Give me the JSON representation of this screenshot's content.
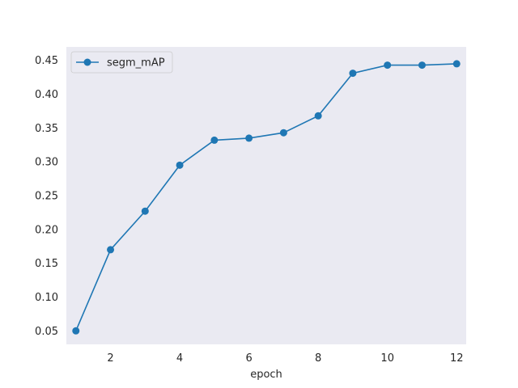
{
  "chart_data": {
    "type": "line",
    "title": "",
    "xlabel": "epoch",
    "ylabel": "",
    "xlim": [
      0.725,
      12.275
    ],
    "ylim": [
      0.03,
      0.47
    ],
    "xticks": [
      2,
      4,
      6,
      8,
      10,
      12
    ],
    "yticks": [
      0.05,
      0.1,
      0.15,
      0.2,
      0.25,
      0.3,
      0.35,
      0.4,
      0.45
    ],
    "grid": false,
    "legend_position": "upper left",
    "background": "#eaeaf2",
    "series": [
      {
        "name": "segm_mAP",
        "color": "#1f77b4",
        "marker": "circle",
        "x": [
          1,
          2,
          3,
          4,
          5,
          6,
          7,
          8,
          9,
          10,
          11,
          12
        ],
        "y": [
          0.05,
          0.17,
          0.227,
          0.295,
          0.332,
          0.335,
          0.343,
          0.368,
          0.431,
          0.443,
          0.443,
          0.445
        ]
      }
    ]
  }
}
